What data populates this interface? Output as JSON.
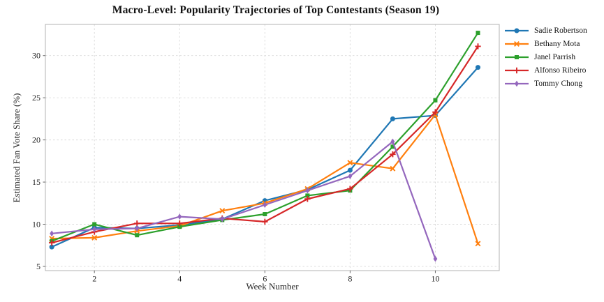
{
  "figure": {
    "title": "Macro-Level: Popularity Trajectories of Top Contestants (Season 19)",
    "xlabel": "Week Number",
    "ylabel": "Estimated Fan Vote Share (%)",
    "background": "#ffffff"
  },
  "chart_data": {
    "type": "line",
    "title": "Macro-Level: Popularity Trajectories of Top Contestants (Season 19)",
    "xlabel": "Week Number",
    "ylabel": "Estimated Fan Vote Share (%)",
    "x": [
      1,
      2,
      3,
      4,
      5,
      6,
      7,
      8,
      9,
      10,
      11
    ],
    "xticks": [
      2,
      4,
      6,
      8,
      10
    ],
    "yticks": [
      5,
      10,
      15,
      20,
      25,
      30
    ],
    "xlim": [
      0.85,
      11.5
    ],
    "ylim": [
      4.5,
      33.7
    ],
    "grid": true,
    "grid_style": "dashed",
    "legend_position": "right-outside",
    "series": [
      {
        "name": "Sadie Robertson",
        "color": "#1f77b4",
        "marker": "circle",
        "values": [
          7.3,
          9.6,
          9.5,
          9.9,
          10.6,
          12.8,
          14.1,
          16.4,
          22.5,
          22.9,
          28.6
        ]
      },
      {
        "name": "Bethany Mota",
        "color": "#ff7f0e",
        "marker": "x",
        "values": [
          8.3,
          8.4,
          9.2,
          9.8,
          11.6,
          12.5,
          14.2,
          17.3,
          16.6,
          23.0,
          7.7
        ]
      },
      {
        "name": "Janel Parrish",
        "color": "#2ca02c",
        "marker": "square",
        "values": [
          8.0,
          10.0,
          8.7,
          9.7,
          10.5,
          11.2,
          13.4,
          14.0,
          19.2,
          24.7,
          32.7
        ]
      },
      {
        "name": "Alfonso Ribeiro",
        "color": "#d62728",
        "marker": "plus",
        "values": [
          7.8,
          9.1,
          10.1,
          10.1,
          10.7,
          10.3,
          13.0,
          14.2,
          18.3,
          23.3,
          31.1
        ]
      },
      {
        "name": "Tommy Chong",
        "color": "#9467bd",
        "marker": "diamond",
        "values": [
          8.9,
          9.4,
          9.5,
          10.9,
          10.6,
          12.3,
          14.0,
          15.7,
          19.8,
          5.9,
          null
        ]
      }
    ]
  }
}
